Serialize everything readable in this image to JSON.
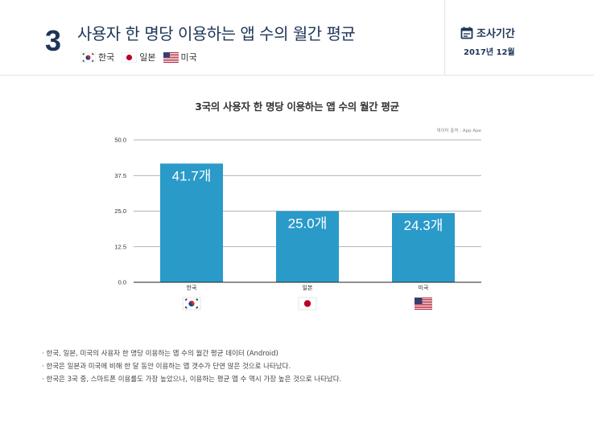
{
  "header": {
    "number": "3",
    "title": "사용자 한 명당 이용하는 앱 수의 월간 평균",
    "legend": [
      {
        "label": "한국",
        "flag": "korea-flag-icon"
      },
      {
        "label": "일본",
        "flag": "japan-flag-icon"
      },
      {
        "label": "미국",
        "flag": "usa-flag-icon"
      }
    ],
    "period_label": "조사기간",
    "period_value": "2017년 12월"
  },
  "colors": {
    "bar": "#2a9ac9",
    "navy": "#1d3557"
  },
  "chart_data": {
    "type": "bar",
    "title": "3국의 사용자 한 명당 이용하는 앱 수의 월간 평균",
    "source": "데이터 출처 : App Ape",
    "categories": [
      "한국",
      "일본",
      "미국"
    ],
    "values": [
      41.7,
      25.0,
      24.3
    ],
    "value_labels": [
      "41.7개",
      "25.0개",
      "24.3개"
    ],
    "yticks": [
      "0.0",
      "12.5",
      "25.0",
      "37.5",
      "50.0"
    ],
    "ylim": [
      0,
      50
    ],
    "grid": true,
    "xlabel": "",
    "ylabel": ""
  },
  "notes": [
    "· 한국, 일본, 미국의 사용자 한 명당 이용하는 앱 수의 월간 평균 데이터 (Android)",
    "· 한국은 일본과 미국에 비해 한 달 동안 이용하는 앱 갯수가 단연 많은 것으로 나타났다.",
    "· 한국은 3국 중, 스마트폰 이용률도 가장 높았으나, 이용하는 평균 앱 수 역시 가장 높은 것으로 나타났다."
  ]
}
